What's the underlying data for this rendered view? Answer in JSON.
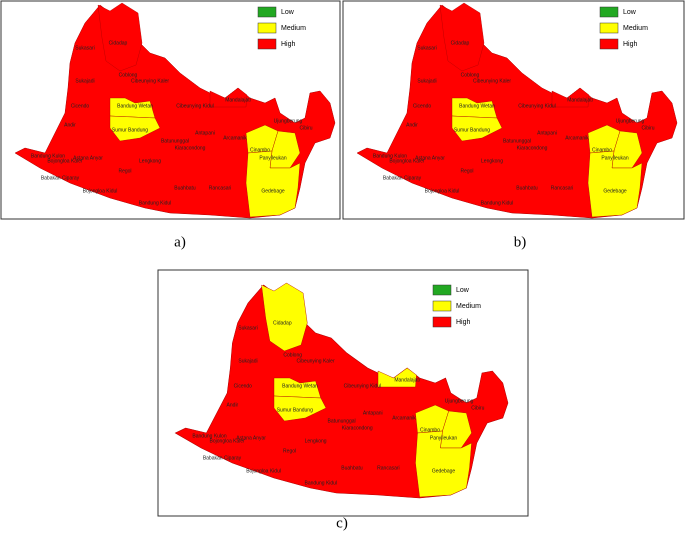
{
  "legend": [
    {
      "label": "Low",
      "color": "#22a822"
    },
    {
      "label": "Medium",
      "color": "#ffff00"
    },
    {
      "label": "High",
      "color": "#ff0000"
    }
  ],
  "panels": [
    {
      "caption": "a)",
      "medium": [
        "Bandung Wetan",
        "Sumur Bandung",
        "Cinambo",
        "Panyileukan",
        "Gedebage"
      ],
      "labels": [
        "Sukasari",
        "Cidadap",
        "Sukajadi",
        "Coblong",
        "Cibeunying Kaler",
        "Cicendo",
        "Bandung Wetan",
        "Cibeunying Kidul",
        "Mandalajati",
        "Andir",
        "Sumur Bandung",
        "Ujungberung",
        "Cibiru",
        "Batununggal",
        "Kiaracondong",
        "Antapani",
        "Arcamanik",
        "Bandung Kulon",
        "Bojongloa Kaler",
        "Astana Anyar",
        "Lengkong",
        "Cinambo",
        "Panyileukan",
        "Regol",
        "Babakan Ciparay",
        "Bojongloa Kidul",
        "Buahbatu",
        "Rancasari",
        "Gedebage",
        "Bandung Kidul"
      ]
    },
    {
      "caption": "b)",
      "medium": [
        "Bandung Wetan",
        "Sumur Bandung",
        "Cinambo",
        "Panyileukan",
        "Gedebage"
      ],
      "labels": [
        "Sukasari",
        "Cidadap",
        "Sukajadi",
        "Coblong",
        "Cibeunying Kaler",
        "Cicendo",
        "Bandung Wetan",
        "Cibeunying Kidul",
        "Mandalajati",
        "Andir",
        "Sumur Bandung",
        "Ujungberung",
        "Cibiru",
        "Batununggal",
        "Kiaracondong",
        "Antapani",
        "Arcamanik",
        "Bandung Kulon",
        "Bojongloa Kaler",
        "Astana Anyar",
        "Lengkong",
        "Cinambo",
        "Panyileukan",
        "Regol",
        "Babakan Ciparay",
        "Bojongloa Kidul",
        "Buahbatu",
        "Rancasari",
        "Gedebage",
        "Bandung Kidul"
      ]
    },
    {
      "caption": "c)",
      "medium": [
        "Cidadap",
        "Bandung Wetan",
        "Sumur Bandung",
        "Mandalajati",
        "Cinambo",
        "Panyileukan",
        "Gedebage"
      ],
      "labels": [
        "Sukasari",
        "Cidadap",
        "Sukajadi",
        "Coblong",
        "Cibeunying Kaler",
        "Cicendo",
        "Bandung Wetan",
        "Cibeunying Kidul",
        "Mandalajati",
        "Andir",
        "Sumur Bandung",
        "Ujungberung",
        "Cibiru",
        "Batununggal",
        "Kiaracondong",
        "Antapani",
        "Arcamanik",
        "Bandung Kulon",
        "Bojongloa Kaler",
        "Astana Anyar",
        "Lengkong",
        "Cinambo",
        "Panyileukan",
        "Regol",
        "Babakan Ciparay",
        "Bojongloa Kidul",
        "Buahbatu",
        "Rancasari",
        "Gedebage",
        "Bandung Kidul"
      ]
    }
  ]
}
